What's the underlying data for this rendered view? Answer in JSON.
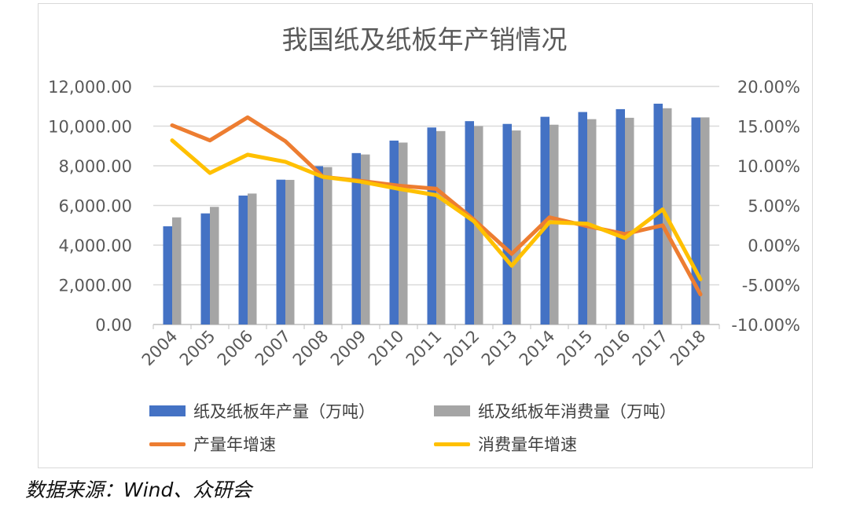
{
  "chart_data": {
    "type": "bar+line",
    "title": "我国纸及纸板年产销情况",
    "categories": [
      "2004",
      "2005",
      "2006",
      "2007",
      "2008",
      "2009",
      "2010",
      "2011",
      "2012",
      "2013",
      "2014",
      "2015",
      "2016",
      "2017",
      "2018"
    ],
    "y_left": {
      "range": [
        0,
        12000
      ],
      "ticks": [
        "0.00",
        "2,000.00",
        "4,000.00",
        "6,000.00",
        "8,000.00",
        "10,000.00",
        "12,000.00"
      ]
    },
    "y_right": {
      "range": [
        -10,
        20
      ],
      "ticks": [
        "-10.00%",
        "-5.00%",
        "0.00%",
        "5.00%",
        "10.00%",
        "15.00%",
        "20.00%"
      ]
    },
    "grid": true,
    "legend_placement": "bottom",
    "series": [
      {
        "name": "纸及纸板年产量（万吨）",
        "type": "bar",
        "axis": "left",
        "color": "#4472c4",
        "values": [
          4950,
          5600,
          6500,
          7300,
          7980,
          8640,
          9270,
          9930,
          10250,
          10110,
          10470,
          10710,
          10855,
          11130,
          10435
        ]
      },
      {
        "name": "纸及纸板年消费量（万吨）",
        "type": "bar",
        "axis": "left",
        "color": "#a5a5a5",
        "values": [
          5400,
          5930,
          6600,
          7290,
          7935,
          8570,
          9170,
          9750,
          10000,
          9780,
          10070,
          10350,
          10420,
          10900,
          10440
        ]
      },
      {
        "name": "产量年增速",
        "type": "line",
        "axis": "right",
        "color": "#ed7d31",
        "values": [
          15.1,
          13.2,
          16.1,
          13.1,
          8.6,
          8.1,
          7.5,
          7.1,
          3.2,
          -1.1,
          3.5,
          2.4,
          1.4,
          2.5,
          -6.2
        ]
      },
      {
        "name": "消费量年增速",
        "type": "line",
        "axis": "right",
        "color": "#ffc000",
        "values": [
          13.2,
          9.1,
          11.4,
          10.5,
          8.6,
          8.0,
          7.1,
          6.3,
          3.0,
          -2.6,
          2.9,
          2.7,
          0.9,
          4.5,
          -4.3
        ]
      }
    ]
  },
  "source": "数据来源：Wind、众研会"
}
